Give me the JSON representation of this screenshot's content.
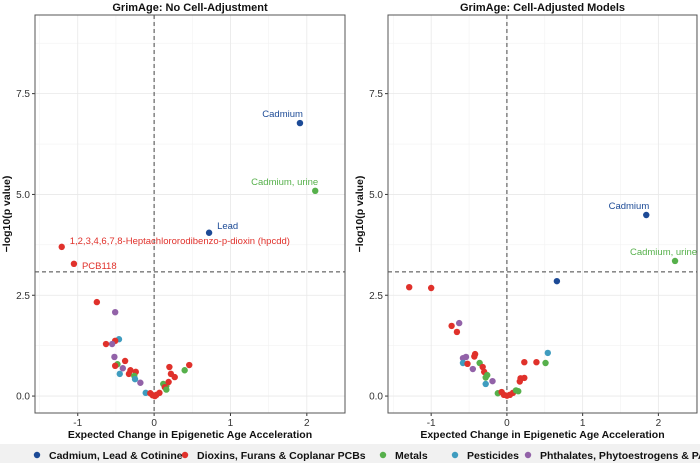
{
  "chart_data": [
    {
      "type": "scatter",
      "title": "GrimAge: No Cell-Adjustment",
      "xlabel": "Expected Change in Epigenetic Age Acceleration",
      "ylabel": "−log10(p value)",
      "xlim": [
        -1.56,
        2.5
      ],
      "ylim": [
        -0.42,
        9.45
      ],
      "xticks": [
        -1,
        0,
        1,
        2
      ],
      "yticks": [
        "0.0",
        "2.5",
        "5.0",
        "7.5"
      ],
      "grid": true,
      "hline": 3.08,
      "vline": 0,
      "points": [
        {
          "x": 1.91,
          "y": 6.77,
          "g": 0,
          "label": "Cadmium"
        },
        {
          "x": 2.11,
          "y": 5.09,
          "g": 2,
          "label": "Cadmium, urine"
        },
        {
          "x": 0.72,
          "y": 4.05,
          "g": 0,
          "label": "Lead"
        },
        {
          "x": -1.21,
          "y": 3.7,
          "g": 1,
          "label": "1,2,3,4,6,7,8-Heptachlororodibenzo-p-dioxin (hpcdd)"
        },
        {
          "x": -1.05,
          "y": 3.28,
          "g": 1,
          "label": "PCB118"
        },
        {
          "x": -0.75,
          "y": 2.33,
          "g": 1
        },
        {
          "x": -0.51,
          "y": 2.08,
          "g": 4
        },
        {
          "x": -0.46,
          "y": 1.41,
          "g": 3
        },
        {
          "x": -0.51,
          "y": 1.37,
          "g": 1
        },
        {
          "x": -0.55,
          "y": 1.29,
          "g": 4
        },
        {
          "x": -0.63,
          "y": 1.29,
          "g": 1
        },
        {
          "x": -0.52,
          "y": 0.97,
          "g": 4
        },
        {
          "x": -0.38,
          "y": 0.87,
          "g": 1
        },
        {
          "x": -0.48,
          "y": 0.79,
          "g": 2
        },
        {
          "x": -0.51,
          "y": 0.75,
          "g": 1
        },
        {
          "x": -0.41,
          "y": 0.69,
          "g": 4
        },
        {
          "x": -0.45,
          "y": 0.55,
          "g": 3
        },
        {
          "x": -0.31,
          "y": 0.64,
          "g": 1
        },
        {
          "x": -0.33,
          "y": 0.55,
          "g": 1
        },
        {
          "x": -0.24,
          "y": 0.6,
          "g": 1
        },
        {
          "x": -0.26,
          "y": 0.5,
          "g": 2
        },
        {
          "x": -0.25,
          "y": 0.42,
          "g": 3
        },
        {
          "x": -0.18,
          "y": 0.33,
          "g": 4
        },
        {
          "x": -0.11,
          "y": 0.08,
          "g": 3
        },
        {
          "x": -0.05,
          "y": 0.07,
          "g": 1
        },
        {
          "x": -0.02,
          "y": 0.02,
          "g": 1
        },
        {
          "x": 0.01,
          "y": 0.0,
          "g": 1
        },
        {
          "x": 0.07,
          "y": 0.08,
          "g": 1
        },
        {
          "x": 0.03,
          "y": 0.03,
          "g": 1
        },
        {
          "x": 0.12,
          "y": 0.3,
          "g": 2
        },
        {
          "x": 0.16,
          "y": 0.25,
          "g": 2
        },
        {
          "x": 0.14,
          "y": 0.22,
          "g": 1
        },
        {
          "x": 0.16,
          "y": 0.16,
          "g": 2
        },
        {
          "x": 0.19,
          "y": 0.35,
          "g": 1
        },
        {
          "x": 0.2,
          "y": 0.72,
          "g": 1
        },
        {
          "x": 0.22,
          "y": 0.55,
          "g": 1
        },
        {
          "x": 0.27,
          "y": 0.47,
          "g": 1
        },
        {
          "x": 0.4,
          "y": 0.64,
          "g": 2
        },
        {
          "x": 0.46,
          "y": 0.77,
          "g": 1
        }
      ]
    },
    {
      "type": "scatter",
      "title": "GrimAge: Cell-Adjusted Models",
      "xlabel": "Expected Change in Epigenetic Age Acceleration",
      "ylabel": "−log10(p value)",
      "xlim": [
        -1.57,
        2.51
      ],
      "ylim": [
        -0.42,
        9.45
      ],
      "xticks": [
        -1,
        0,
        1,
        2
      ],
      "yticks": [
        "0.0",
        "2.5",
        "5.0",
        "7.5"
      ],
      "grid": true,
      "hline": 3.08,
      "vline": 0,
      "points": [
        {
          "x": 1.84,
          "y": 4.49,
          "g": 0,
          "label": "Cadmium"
        },
        {
          "x": 2.22,
          "y": 3.35,
          "g": 2,
          "label": "Cadmium, urine"
        },
        {
          "x": 0.66,
          "y": 2.85,
          "g": 0
        },
        {
          "x": -1.29,
          "y": 2.7,
          "g": 1
        },
        {
          "x": -1.0,
          "y": 2.68,
          "g": 1
        },
        {
          "x": -0.73,
          "y": 1.74,
          "g": 1
        },
        {
          "x": -0.63,
          "y": 1.81,
          "g": 4
        },
        {
          "x": -0.66,
          "y": 1.59,
          "g": 1
        },
        {
          "x": -0.58,
          "y": 0.94,
          "g": 4
        },
        {
          "x": -0.54,
          "y": 0.97,
          "g": 4
        },
        {
          "x": -0.58,
          "y": 0.82,
          "g": 3
        },
        {
          "x": -0.52,
          "y": 0.8,
          "g": 1
        },
        {
          "x": -0.42,
          "y": 1.04,
          "g": 1
        },
        {
          "x": -0.43,
          "y": 0.98,
          "g": 1
        },
        {
          "x": -0.36,
          "y": 0.82,
          "g": 2
        },
        {
          "x": -0.45,
          "y": 0.67,
          "g": 4
        },
        {
          "x": -0.32,
          "y": 0.72,
          "g": 1
        },
        {
          "x": -0.3,
          "y": 0.6,
          "g": 1
        },
        {
          "x": -0.26,
          "y": 0.52,
          "g": 2
        },
        {
          "x": -0.28,
          "y": 0.46,
          "g": 2
        },
        {
          "x": -0.28,
          "y": 0.3,
          "g": 3
        },
        {
          "x": -0.19,
          "y": 0.37,
          "g": 4
        },
        {
          "x": -0.12,
          "y": 0.07,
          "g": 2
        },
        {
          "x": -0.07,
          "y": 0.1,
          "g": 1
        },
        {
          "x": -0.04,
          "y": 0.03,
          "g": 1
        },
        {
          "x": 0.0,
          "y": 0.01,
          "g": 1
        },
        {
          "x": 0.04,
          "y": 0.03,
          "g": 1
        },
        {
          "x": 0.08,
          "y": 0.08,
          "g": 1
        },
        {
          "x": 0.12,
          "y": 0.14,
          "g": 2
        },
        {
          "x": 0.15,
          "y": 0.12,
          "g": 2
        },
        {
          "x": 0.18,
          "y": 0.44,
          "g": 1
        },
        {
          "x": 0.17,
          "y": 0.36,
          "g": 1
        },
        {
          "x": 0.23,
          "y": 0.45,
          "g": 1
        },
        {
          "x": 0.23,
          "y": 0.84,
          "g": 1
        },
        {
          "x": 0.39,
          "y": 0.84,
          "g": 1
        },
        {
          "x": 0.51,
          "y": 0.82,
          "g": 2
        },
        {
          "x": 0.54,
          "y": 1.07,
          "g": 3
        }
      ]
    }
  ],
  "legend": {
    "placement": "bottom",
    "items": [
      {
        "label": "Cadmium, Lead & Cotinine",
        "color": "#1c4a96"
      },
      {
        "label": "Dioxins, Furans & Coplanar PCBs",
        "color": "#e0312b"
      },
      {
        "label": "Metals",
        "color": "#56b04b"
      },
      {
        "label": "Pesticides",
        "color": "#3f9cbf"
      },
      {
        "label": "Phthalates, Phytoestrogens & PAHs",
        "color": "#9262a8"
      }
    ]
  }
}
